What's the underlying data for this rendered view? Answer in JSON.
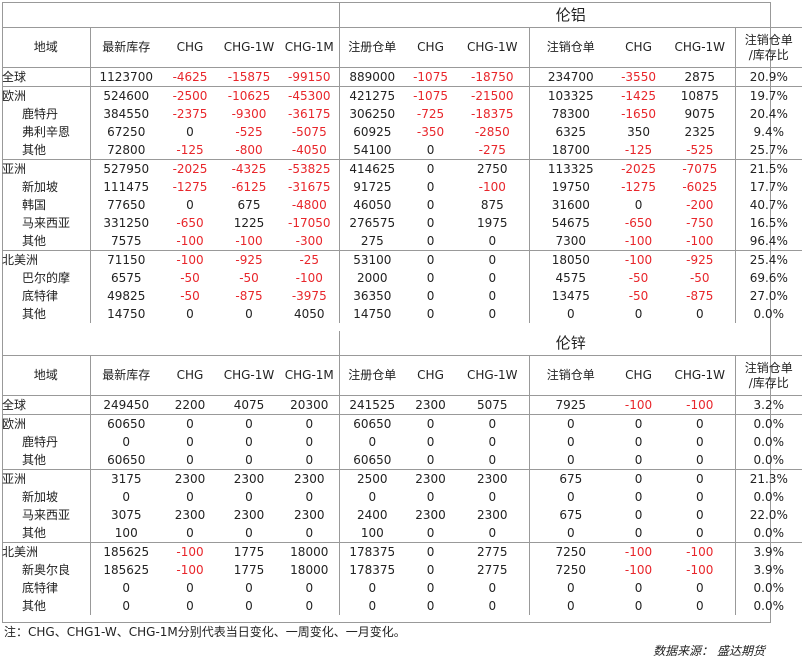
{
  "headers": [
    "地域",
    "最新库存",
    "CHG",
    "CHG-1W",
    "CHG-1M",
    "注册仓单",
    "CHG",
    "CHG-1W",
    "注销仓单",
    "CHG",
    "CHG-1W",
    "注销仓单\n/库存比"
  ],
  "sections": [
    {
      "title": "伦铝",
      "rows": [
        {
          "c": [
            "全球",
            "1123700",
            "-4625",
            "-15875",
            "-99150",
            "889000",
            "-1075",
            "-18750",
            "234700",
            "-3550",
            "2875",
            "20.9%"
          ],
          "sub": false,
          "gs": false
        },
        {
          "c": [
            "欧洲",
            "524600",
            "-2500",
            "-10625",
            "-45300",
            "421275",
            "-1075",
            "-21500",
            "103325",
            "-1425",
            "10875",
            "19.7%"
          ],
          "sub": false,
          "gs": true
        },
        {
          "c": [
            "鹿特丹",
            "384550",
            "-2375",
            "-9300",
            "-36175",
            "306250",
            "-725",
            "-18375",
            "78300",
            "-1650",
            "9075",
            "20.4%"
          ],
          "sub": true,
          "gs": false
        },
        {
          "c": [
            "弗利辛恩",
            "67250",
            "0",
            "-525",
            "-5075",
            "60925",
            "-350",
            "-2850",
            "6325",
            "350",
            "2325",
            "9.4%"
          ],
          "sub": true,
          "gs": false
        },
        {
          "c": [
            "其他",
            "72800",
            "-125",
            "-800",
            "-4050",
            "54100",
            "0",
            "-275",
            "18700",
            "-125",
            "-525",
            "25.7%"
          ],
          "sub": true,
          "gs": false
        },
        {
          "c": [
            "亚洲",
            "527950",
            "-2025",
            "-4325",
            "-53825",
            "414625",
            "0",
            "2750",
            "113325",
            "-2025",
            "-7075",
            "21.5%"
          ],
          "sub": false,
          "gs": true
        },
        {
          "c": [
            "新加坡",
            "111475",
            "-1275",
            "-6125",
            "-31675",
            "91725",
            "0",
            "-100",
            "19750",
            "-1275",
            "-6025",
            "17.7%"
          ],
          "sub": true,
          "gs": false
        },
        {
          "c": [
            "韩国",
            "77650",
            "0",
            "675",
            "-4800",
            "46050",
            "0",
            "875",
            "31600",
            "0",
            "-200",
            "40.7%"
          ],
          "sub": true,
          "gs": false
        },
        {
          "c": [
            "马来西亚",
            "331250",
            "-650",
            "1225",
            "-17050",
            "276575",
            "0",
            "1975",
            "54675",
            "-650",
            "-750",
            "16.5%"
          ],
          "sub": true,
          "gs": false
        },
        {
          "c": [
            "其他",
            "7575",
            "-100",
            "-100",
            "-300",
            "275",
            "0",
            "0",
            "7300",
            "-100",
            "-100",
            "96.4%"
          ],
          "sub": true,
          "gs": false
        },
        {
          "c": [
            "北美洲",
            "71150",
            "-100",
            "-925",
            "-25",
            "53100",
            "0",
            "0",
            "18050",
            "-100",
            "-925",
            "25.4%"
          ],
          "sub": false,
          "gs": true
        },
        {
          "c": [
            "巴尔的摩",
            "6575",
            "-50",
            "-50",
            "-100",
            "2000",
            "0",
            "0",
            "4575",
            "-50",
            "-50",
            "69.6%"
          ],
          "sub": true,
          "gs": false
        },
        {
          "c": [
            "底特律",
            "49825",
            "-50",
            "-875",
            "-3975",
            "36350",
            "0",
            "0",
            "13475",
            "-50",
            "-875",
            "27.0%"
          ],
          "sub": true,
          "gs": false
        },
        {
          "c": [
            "其他",
            "14750",
            "0",
            "0",
            "4050",
            "14750",
            "0",
            "0",
            "0",
            "0",
            "0",
            "0.0%"
          ],
          "sub": true,
          "gs": false
        }
      ]
    },
    {
      "title": "伦锌",
      "rows": [
        {
          "c": [
            "全球",
            "249450",
            "2200",
            "4075",
            "20300",
            "241525",
            "2300",
            "5075",
            "7925",
            "-100",
            "-100",
            "3.2%"
          ],
          "sub": false,
          "gs": false
        },
        {
          "c": [
            "欧洲",
            "60650",
            "0",
            "0",
            "0",
            "60650",
            "0",
            "0",
            "0",
            "0",
            "0",
            "0.0%"
          ],
          "sub": false,
          "gs": true
        },
        {
          "c": [
            "鹿特丹",
            "0",
            "0",
            "0",
            "0",
            "0",
            "0",
            "0",
            "0",
            "0",
            "0",
            "0.0%"
          ],
          "sub": true,
          "gs": false
        },
        {
          "c": [
            "其他",
            "60650",
            "0",
            "0",
            "0",
            "60650",
            "0",
            "0",
            "0",
            "0",
            "0",
            "0.0%"
          ],
          "sub": true,
          "gs": false
        },
        {
          "c": [
            "亚洲",
            "3175",
            "2300",
            "2300",
            "2300",
            "2500",
            "2300",
            "2300",
            "675",
            "0",
            "0",
            "21.3%"
          ],
          "sub": false,
          "gs": true
        },
        {
          "c": [
            "新加坡",
            "0",
            "0",
            "0",
            "0",
            "0",
            "0",
            "0",
            "0",
            "0",
            "0",
            "0.0%"
          ],
          "sub": true,
          "gs": false
        },
        {
          "c": [
            "马来西亚",
            "3075",
            "2300",
            "2300",
            "2300",
            "2400",
            "2300",
            "2300",
            "675",
            "0",
            "0",
            "22.0%"
          ],
          "sub": true,
          "gs": false
        },
        {
          "c": [
            "其他",
            "100",
            "0",
            "0",
            "0",
            "100",
            "0",
            "0",
            "0",
            "0",
            "0",
            "0.0%"
          ],
          "sub": true,
          "gs": false
        },
        {
          "c": [
            "北美洲",
            "185625",
            "-100",
            "1775",
            "18000",
            "178375",
            "0",
            "2775",
            "7250",
            "-100",
            "-100",
            "3.9%"
          ],
          "sub": false,
          "gs": true
        },
        {
          "c": [
            "新奥尔良",
            "185625",
            "-100",
            "1775",
            "18000",
            "178375",
            "0",
            "2775",
            "7250",
            "-100",
            "-100",
            "3.9%"
          ],
          "sub": true,
          "gs": false
        },
        {
          "c": [
            "底特律",
            "0",
            "0",
            "0",
            "0",
            "0",
            "0",
            "0",
            "0",
            "0",
            "0",
            "0.0%"
          ],
          "sub": true,
          "gs": false
        },
        {
          "c": [
            "其他",
            "0",
            "0",
            "0",
            "0",
            "0",
            "0",
            "0",
            "0",
            "0",
            "0",
            "0.0%"
          ],
          "sub": true,
          "gs": false
        }
      ]
    }
  ],
  "footer": {
    "note": "注：CHG、CHG1-W、CHG-1M分别代表当日变化、一周变化、一月变化。",
    "source": "数据来源：  盛达期货"
  },
  "colors": {
    "negative": "#e8262b",
    "border": "#999999",
    "text": "#222222"
  }
}
